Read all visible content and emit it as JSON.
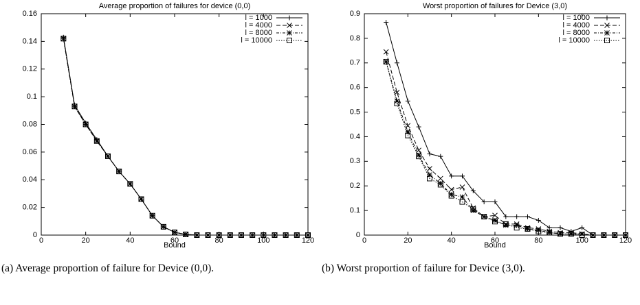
{
  "chart_data": [
    {
      "type": "line",
      "title": "Average proportion of failures for device (0,0)",
      "xlabel": "Bound",
      "caption": "(a) Average proportion of failure for Device (0,0).",
      "x": [
        10,
        15,
        20,
        25,
        30,
        35,
        40,
        45,
        50,
        55,
        60,
        65,
        70,
        75,
        80,
        85,
        90,
        95,
        100,
        105,
        110,
        115,
        120
      ],
      "xlim": [
        0,
        120
      ],
      "xticks": [
        0,
        20,
        40,
        60,
        80,
        100,
        120
      ],
      "ylim": [
        0,
        0.16
      ],
      "yticks": [
        0,
        0.02,
        0.04,
        0.06,
        0.08,
        0.1,
        0.12,
        0.14,
        0.16
      ],
      "legend": "upper right",
      "series": [
        {
          "name": "l = 1000",
          "color": "#000000",
          "dash": "solid",
          "marker": "plus",
          "values": [
            0.143,
            0.094,
            0.081,
            0.069,
            0.057,
            0.046,
            0.037,
            0.026,
            0.014,
            0.006,
            0.002,
            0.0005,
            0,
            0,
            0,
            0,
            0,
            0,
            0,
            0,
            0,
            0,
            0
          ]
        },
        {
          "name": "l = 4000",
          "color": "#000000",
          "dash": "dashed",
          "marker": "cross",
          "values": [
            0.142,
            0.093,
            0.08,
            0.068,
            0.057,
            0.046,
            0.037,
            0.026,
            0.014,
            0.006,
            0.002,
            0.0005,
            0,
            0,
            0,
            0,
            0,
            0,
            0,
            0,
            0,
            0,
            0
          ]
        },
        {
          "name": "l = 8000",
          "color": "#000000",
          "dash": "dashdot",
          "marker": "star",
          "values": [
            0.142,
            0.093,
            0.08,
            0.068,
            0.057,
            0.046,
            0.037,
            0.026,
            0.014,
            0.006,
            0.002,
            0.0005,
            0,
            0,
            0,
            0,
            0,
            0,
            0,
            0,
            0,
            0,
            0
          ]
        },
        {
          "name": "l = 10000",
          "color": "#000000",
          "dash": "dotted",
          "marker": "square",
          "values": [
            0.142,
            0.093,
            0.08,
            0.068,
            0.057,
            0.046,
            0.037,
            0.026,
            0.014,
            0.006,
            0.002,
            0.0005,
            0,
            0,
            0,
            0,
            0,
            0,
            0,
            0,
            0,
            0,
            0
          ]
        }
      ]
    },
    {
      "type": "line",
      "title": "Worst proportion of failures for Device (3,0)",
      "xlabel": "Bound",
      "caption": "(b) Worst proportion of failure for Device (3,0).",
      "x": [
        10,
        15,
        20,
        25,
        30,
        35,
        40,
        45,
        50,
        55,
        60,
        65,
        70,
        75,
        80,
        85,
        90,
        95,
        100,
        105,
        110,
        115,
        120
      ],
      "xlim": [
        0,
        120
      ],
      "xticks": [
        0,
        20,
        40,
        60,
        80,
        100,
        120
      ],
      "ylim": [
        0,
        0.9
      ],
      "yticks": [
        0,
        0.1,
        0.2,
        0.3,
        0.4,
        0.5,
        0.6,
        0.7,
        0.8,
        0.9
      ],
      "legend": "upper right",
      "series": [
        {
          "name": "l = 1000",
          "color": "#000000",
          "dash": "solid",
          "marker": "plus",
          "values": [
            0.865,
            0.7,
            0.545,
            0.44,
            0.33,
            0.32,
            0.24,
            0.24,
            0.18,
            0.135,
            0.135,
            0.075,
            0.075,
            0.075,
            0.06,
            0.03,
            0.03,
            0.015,
            0.03,
            0,
            0,
            0,
            0
          ]
        },
        {
          "name": "l = 4000",
          "color": "#000000",
          "dash": "dashed",
          "marker": "cross",
          "values": [
            0.745,
            0.58,
            0.445,
            0.345,
            0.27,
            0.23,
            0.185,
            0.195,
            0.11,
            0.075,
            0.08,
            0.045,
            0.045,
            0.03,
            0.025,
            0.015,
            0.01,
            0.01,
            0.005,
            0,
            0,
            0,
            0
          ]
        },
        {
          "name": "l = 8000",
          "color": "#000000",
          "dash": "dashdot",
          "marker": "star",
          "values": [
            0.705,
            0.545,
            0.42,
            0.325,
            0.245,
            0.21,
            0.165,
            0.155,
            0.1,
            0.075,
            0.06,
            0.04,
            0.04,
            0.025,
            0.02,
            0.01,
            0.005,
            0.005,
            0.005,
            0,
            0,
            0,
            0
          ]
        },
        {
          "name": "l = 10000",
          "color": "#000000",
          "dash": "dotted",
          "marker": "square",
          "values": [
            0.705,
            0.535,
            0.405,
            0.32,
            0.23,
            0.205,
            0.16,
            0.135,
            0.105,
            0.075,
            0.055,
            0.045,
            0.03,
            0.025,
            0.015,
            0.01,
            0.005,
            0.005,
            0,
            0,
            0,
            0,
            0
          ]
        }
      ]
    }
  ]
}
